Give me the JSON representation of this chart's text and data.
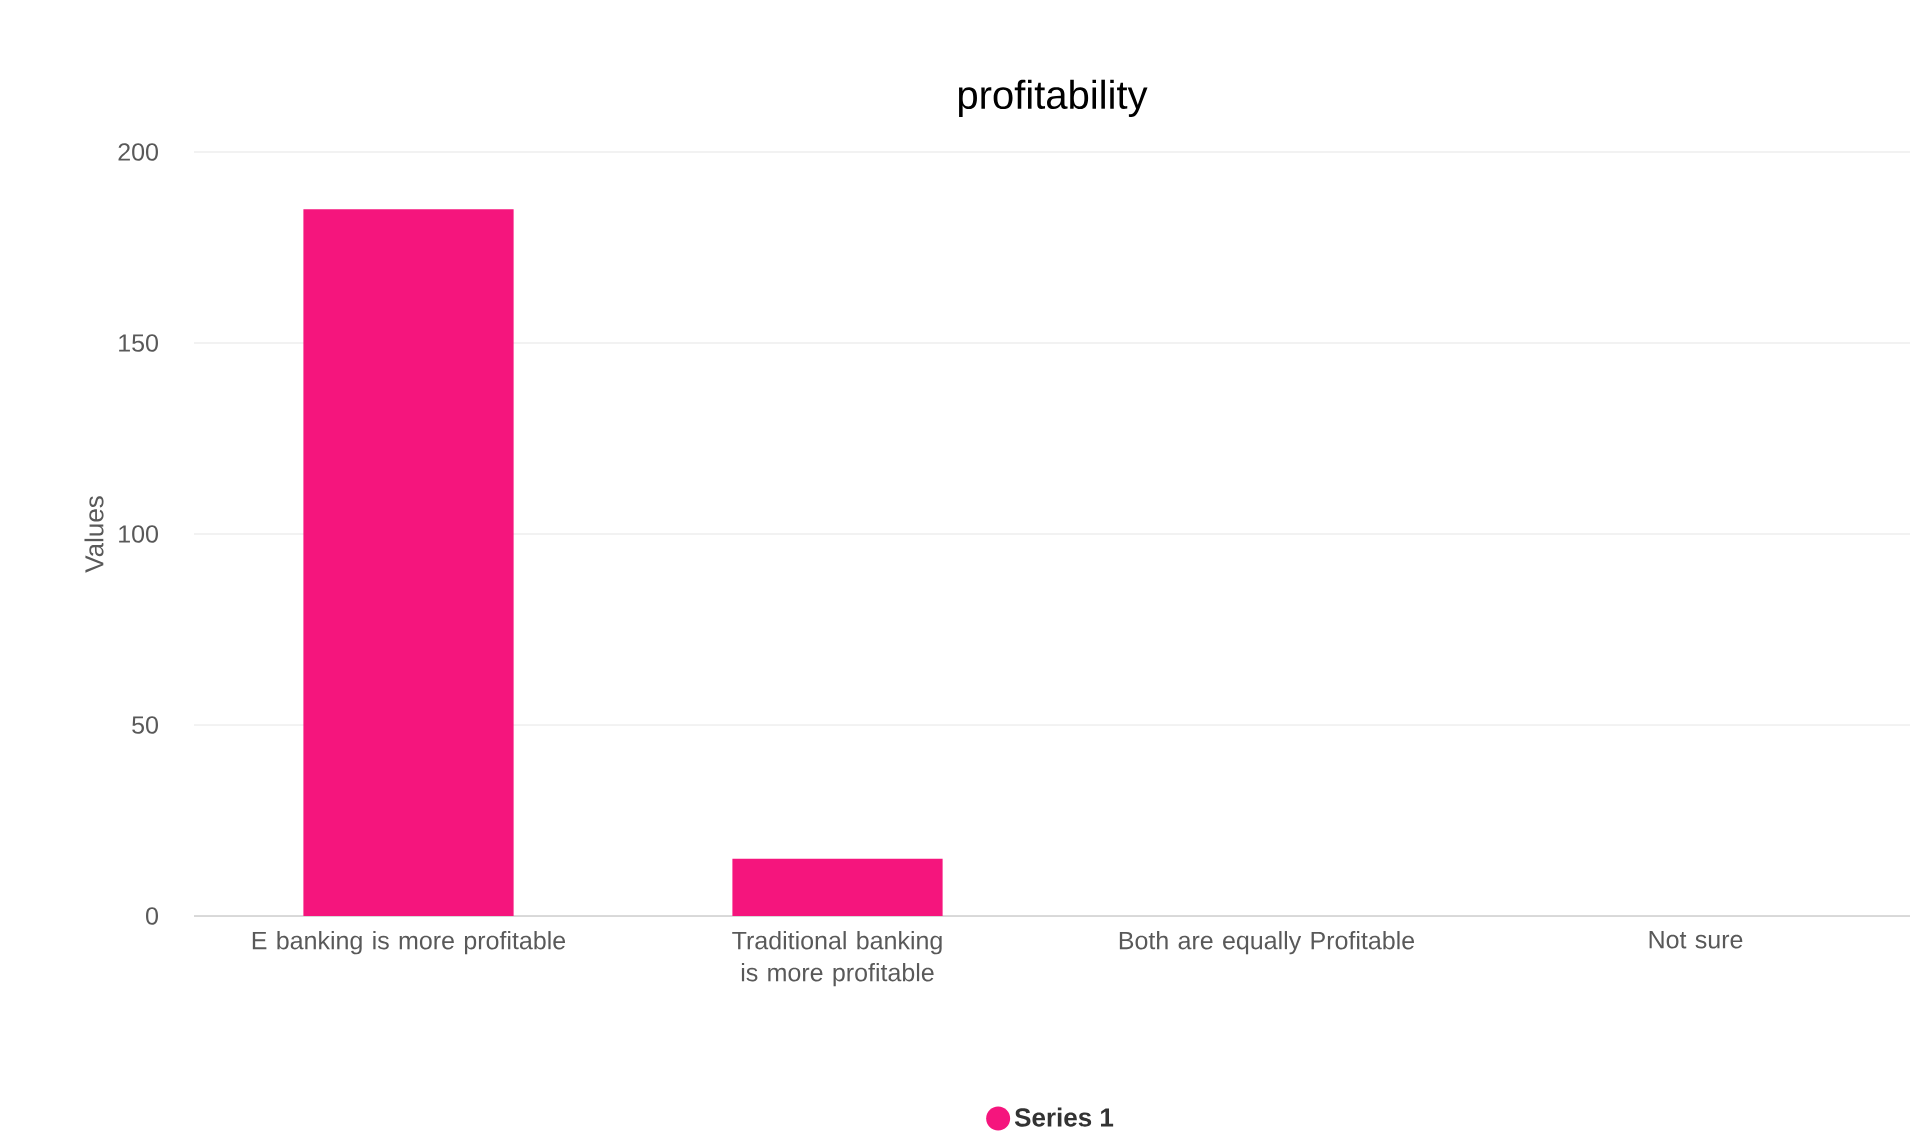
{
  "chart_data": {
    "type": "bar",
    "title": "profitability",
    "ylabel": "Values",
    "categories": [
      "E banking is more profitable",
      "Traditional banking is more profitable",
      "Both are equally Profitable",
      "Not sure"
    ],
    "series": [
      {
        "name": "Series 1",
        "color": "#f5157d",
        "values": [
          185,
          15,
          0,
          0
        ]
      }
    ],
    "ylim": [
      0,
      200
    ],
    "yticks": [
      0,
      50,
      100,
      150,
      200
    ],
    "grid": "y",
    "legend": "bottom"
  }
}
